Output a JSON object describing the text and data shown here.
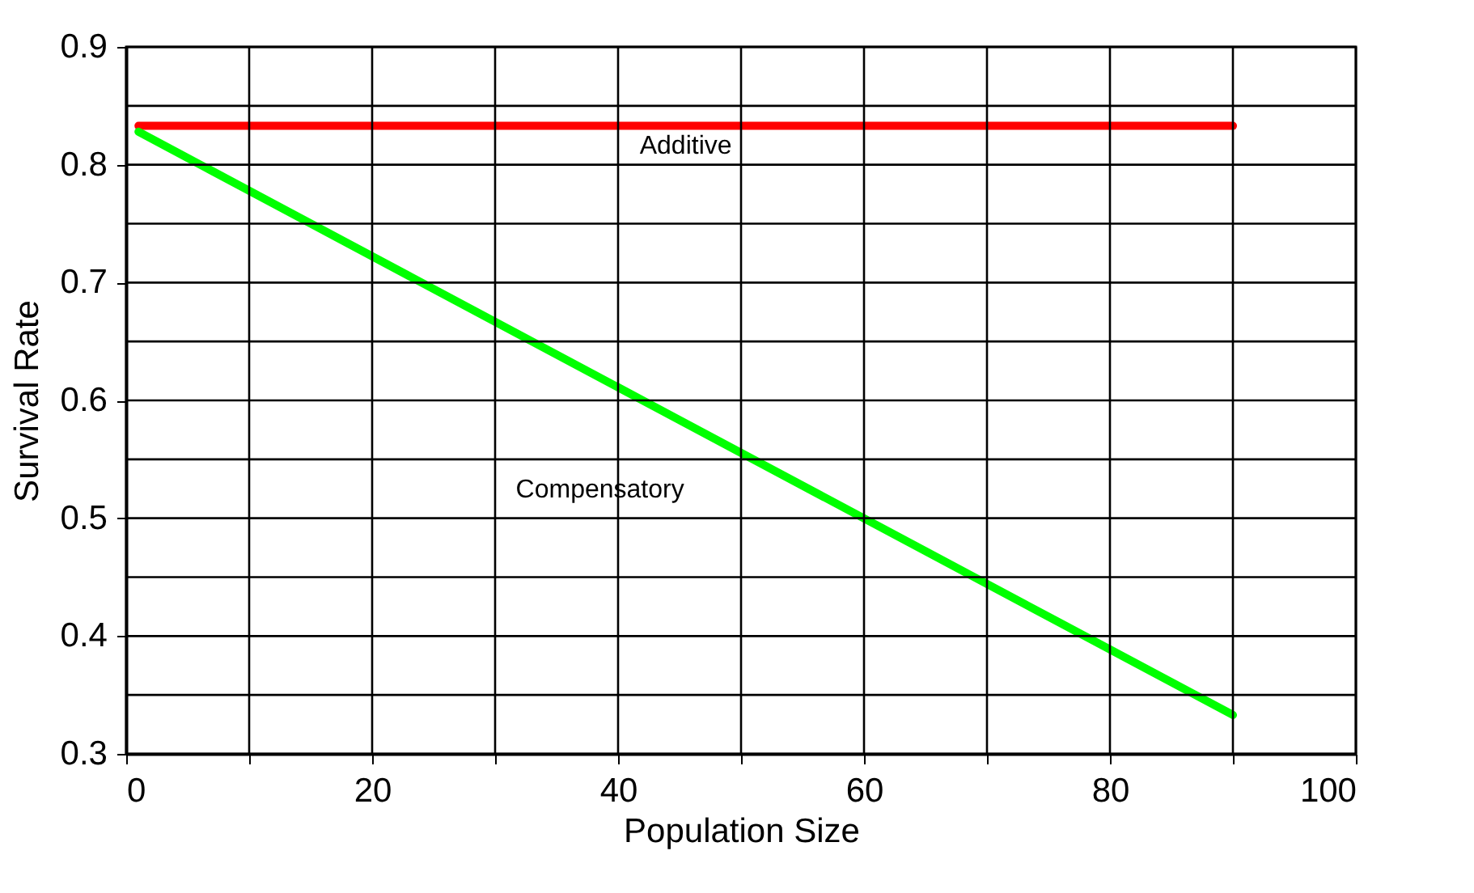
{
  "chart_data": {
    "type": "line",
    "xlabel": "Population Size",
    "ylabel": "Survival Rate",
    "xlim": [
      0,
      100
    ],
    "ylim": [
      0.3,
      0.9
    ],
    "xticks": [
      0,
      {
        "value": 10,
        "label": null
      },
      20,
      {
        "value": 30,
        "label": null
      },
      40,
      {
        "value": 50,
        "label": null
      },
      60,
      {
        "value": 70,
        "label": null
      },
      80,
      {
        "value": 90,
        "label": null
      },
      100
    ],
    "yticks": [
      0.3,
      {
        "value": 0.35,
        "label": null
      },
      0.4,
      {
        "value": 0.45,
        "label": null
      },
      0.5,
      {
        "value": 0.55,
        "label": null
      },
      0.6,
      {
        "value": 0.65,
        "label": null
      },
      0.7,
      {
        "value": 0.75,
        "label": null
      },
      0.8,
      {
        "value": 0.85,
        "label": null
      },
      0.9
    ],
    "x": [
      1,
      90
    ],
    "series": [
      {
        "name": "Additive",
        "color": "#ff0000",
        "values": [
          0.833,
          0.833
        ]
      },
      {
        "name": "Compensatory",
        "color": "#00ff00",
        "values": [
          0.828,
          0.333
        ]
      }
    ],
    "grid": true,
    "legend": false,
    "marker": "none",
    "line_style": "solid"
  }
}
